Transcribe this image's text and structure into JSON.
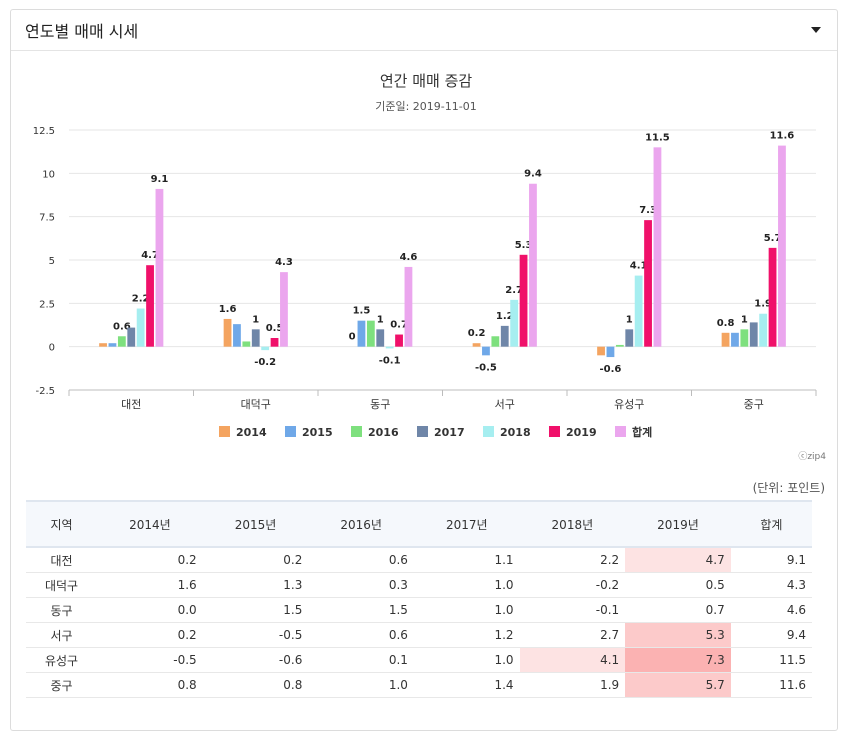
{
  "panel": {
    "title": "연도별 매매 시세"
  },
  "chart_data": {
    "type": "bar",
    "title": "연간 매매 증감",
    "subtitle": "기준일: 2019-11-01",
    "credit": "ⓒzip4",
    "categories": [
      "대전",
      "대덕구",
      "동구",
      "서구",
      "유성구",
      "중구"
    ],
    "ylim": [
      -2.5,
      12.5
    ],
    "yticks": [
      "-2.5",
      "0",
      "2.5",
      "5",
      "7.5",
      "10",
      "12.5"
    ],
    "grid": true,
    "legend_position": "bottom",
    "series": [
      {
        "name": "2014",
        "color": "#f4a460",
        "values": [
          0.2,
          1.6,
          0.0,
          0.2,
          -0.5,
          0.8
        ],
        "labels": [
          "",
          "1.6",
          "0",
          "0.2",
          "",
          "0.8"
        ]
      },
      {
        "name": "2015",
        "color": "#6fa8e8",
        "values": [
          0.2,
          1.3,
          1.5,
          -0.5,
          -0.6,
          0.8
        ],
        "labels": [
          "",
          "",
          "1.5",
          "-0.5",
          "-0.6",
          ""
        ]
      },
      {
        "name": "2016",
        "color": "#7ee07e",
        "values": [
          0.6,
          0.3,
          1.5,
          0.6,
          0.1,
          1.0
        ],
        "labels": [
          "0.6",
          "",
          "",
          "",
          "",
          "1"
        ]
      },
      {
        "name": "2017",
        "color": "#6f86a8",
        "values": [
          1.1,
          1.0,
          1.0,
          1.2,
          1.0,
          1.4
        ],
        "labels": [
          "",
          "1",
          "1",
          "1.2",
          "1",
          ""
        ]
      },
      {
        "name": "2018",
        "color": "#a6eef0",
        "values": [
          2.2,
          -0.2,
          -0.1,
          2.7,
          4.1,
          1.9
        ],
        "labels": [
          "2.2",
          "-0.2",
          "-0.1",
          "2.7",
          "4.1",
          "1.9"
        ]
      },
      {
        "name": "2019",
        "color": "#f0106a",
        "values": [
          4.7,
          0.5,
          0.7,
          5.3,
          7.3,
          5.7
        ],
        "labels": [
          "4.7",
          "0.5",
          "0.7",
          "5.3",
          "7.3",
          "5.7"
        ]
      },
      {
        "name": "합계",
        "color": "#eba6ee",
        "values": [
          9.1,
          4.3,
          4.6,
          9.4,
          11.5,
          11.6
        ],
        "labels": [
          "9.1",
          "4.3",
          "4.6",
          "9.4",
          "11.5",
          "11.6"
        ]
      }
    ]
  },
  "table": {
    "unit_note": "(단위: 포인트)",
    "headers": [
      "지역",
      "2014년",
      "2015년",
      "2016년",
      "2017년",
      "2018년",
      "2019년",
      "합계"
    ],
    "rows": [
      {
        "cells": [
          "대전",
          "0.2",
          "0.2",
          "0.6",
          "1.1",
          "2.2",
          "4.7",
          "9.1"
        ],
        "highlight": [
          null,
          null,
          null,
          null,
          null,
          null,
          "#fde3e3",
          null
        ],
        "orange": [
          false,
          false,
          false,
          false,
          false,
          false,
          false,
          false
        ]
      },
      {
        "cells": [
          "대덕구",
          "1.6",
          "1.3",
          "0.3",
          "1.0",
          "-0.2",
          "0.5",
          "4.3"
        ],
        "highlight": [
          null,
          null,
          null,
          null,
          null,
          null,
          null,
          null
        ],
        "orange": [
          false,
          false,
          false,
          false,
          false,
          false,
          false,
          false
        ]
      },
      {
        "cells": [
          "동구",
          "0.0",
          "1.5",
          "1.5",
          "1.0",
          "-0.1",
          "0.7",
          "4.6"
        ],
        "highlight": [
          null,
          null,
          null,
          null,
          null,
          null,
          null,
          null
        ],
        "orange": [
          false,
          false,
          false,
          false,
          false,
          false,
          false,
          false
        ]
      },
      {
        "cells": [
          "서구",
          "0.2",
          "-0.5",
          "0.6",
          "1.2",
          "2.7",
          "5.3",
          "9.4"
        ],
        "highlight": [
          null,
          null,
          null,
          null,
          null,
          null,
          "#fccaca",
          null
        ],
        "orange": [
          false,
          false,
          false,
          false,
          false,
          false,
          false,
          false
        ]
      },
      {
        "cells": [
          "유성구",
          "-0.5",
          "-0.6",
          "0.1",
          "1.0",
          "4.1",
          "7.3",
          "11.5"
        ],
        "highlight": [
          null,
          null,
          null,
          null,
          null,
          "#fde3e3",
          "#fbb2b2",
          null
        ],
        "orange": [
          false,
          false,
          false,
          false,
          false,
          false,
          false,
          true
        ]
      },
      {
        "cells": [
          "중구",
          "0.8",
          "0.8",
          "1.0",
          "1.4",
          "1.9",
          "5.7",
          "11.6"
        ],
        "highlight": [
          null,
          null,
          null,
          null,
          null,
          null,
          "#fccaca",
          null
        ],
        "orange": [
          false,
          false,
          false,
          false,
          false,
          false,
          false,
          true
        ]
      }
    ]
  }
}
